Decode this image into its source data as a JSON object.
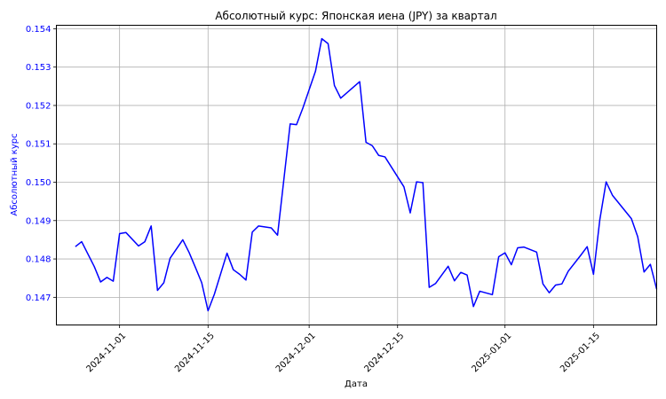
{
  "chart_data": {
    "type": "line",
    "title": "Абсолютный курс: Японская иена (JPY) за квартал",
    "xlabel": "Дата",
    "ylabel": "Абсолютный курс",
    "grid": true,
    "colors": {
      "line": "#0000ff",
      "ylabel": "#0000ff",
      "yticks": "#0000ff",
      "grid": "#b0b0b0"
    },
    "x_ticks": [
      "2024-11-01",
      "2024-11-15",
      "2024-12-01",
      "2024-12-15",
      "2025-01-01",
      "2025-01-15"
    ],
    "y_ticks": [
      "0.147",
      "0.148",
      "0.149",
      "0.150",
      "0.151",
      "0.152",
      "0.153",
      "0.154"
    ],
    "ylim": [
      0.14628,
      0.15409
    ],
    "xlim": [
      "2024-10-22",
      "2025-01-25"
    ],
    "series": [
      {
        "name": "",
        "points": [
          [
            "2024-10-25",
            0.14832
          ],
          [
            "2024-10-26",
            0.14845
          ],
          [
            "2024-10-28",
            0.1478
          ],
          [
            "2024-10-29",
            0.1474
          ],
          [
            "2024-10-30",
            0.14752
          ],
          [
            "2024-10-31",
            0.14742
          ],
          [
            "2024-11-01",
            0.14866
          ],
          [
            "2024-11-02",
            0.14869
          ],
          [
            "2024-11-04",
            0.14834
          ],
          [
            "2024-11-05",
            0.14845
          ],
          [
            "2024-11-06",
            0.14886
          ],
          [
            "2024-11-07",
            0.14718
          ],
          [
            "2024-11-08",
            0.14738
          ],
          [
            "2024-11-09",
            0.14802
          ],
          [
            "2024-11-11",
            0.1485
          ],
          [
            "2024-11-12",
            0.14817
          ],
          [
            "2024-11-13",
            0.14778
          ],
          [
            "2024-11-14",
            0.14738
          ],
          [
            "2024-11-15",
            0.14665
          ],
          [
            "2024-11-16",
            0.14708
          ],
          [
            "2024-11-18",
            0.14815
          ],
          [
            "2024-11-19",
            0.14772
          ],
          [
            "2024-11-20",
            0.1476
          ],
          [
            "2024-11-21",
            0.14745
          ],
          [
            "2024-11-22",
            0.1487
          ],
          [
            "2024-11-23",
            0.14886
          ],
          [
            "2024-11-25",
            0.14881
          ],
          [
            "2024-11-26",
            0.14862
          ],
          [
            "2024-11-28",
            0.15152
          ],
          [
            "2024-11-29",
            0.1515
          ],
          [
            "2024-11-30",
            0.15193
          ],
          [
            "2024-12-02",
            0.15289
          ],
          [
            "2024-12-03",
            0.15374
          ],
          [
            "2024-12-04",
            0.15361
          ],
          [
            "2024-12-05",
            0.15252
          ],
          [
            "2024-12-06",
            0.15219
          ],
          [
            "2024-12-09",
            0.15262
          ],
          [
            "2024-12-10",
            0.15104
          ],
          [
            "2024-12-11",
            0.15095
          ],
          [
            "2024-12-12",
            0.1507
          ],
          [
            "2024-12-13",
            0.15066
          ],
          [
            "2024-12-16",
            0.14988
          ],
          [
            "2024-12-17",
            0.1492
          ],
          [
            "2024-12-18",
            0.15001
          ],
          [
            "2024-12-19",
            0.14999
          ],
          [
            "2024-12-20",
            0.14726
          ],
          [
            "2024-12-21",
            0.14736
          ],
          [
            "2024-12-23",
            0.14781
          ],
          [
            "2024-12-24",
            0.14743
          ],
          [
            "2024-12-25",
            0.14765
          ],
          [
            "2024-12-26",
            0.14758
          ],
          [
            "2024-12-27",
            0.14676
          ],
          [
            "2024-12-28",
            0.14716
          ],
          [
            "2024-12-30",
            0.14707
          ],
          [
            "2024-12-31",
            0.14806
          ],
          [
            "2025-01-01",
            0.14816
          ],
          [
            "2025-01-02",
            0.14785
          ],
          [
            "2025-01-03",
            0.14829
          ],
          [
            "2025-01-04",
            0.14831
          ],
          [
            "2025-01-06",
            0.14818
          ],
          [
            "2025-01-07",
            0.14735
          ],
          [
            "2025-01-08",
            0.14712
          ],
          [
            "2025-01-09",
            0.14732
          ],
          [
            "2025-01-10",
            0.14735
          ],
          [
            "2025-01-11",
            0.14768
          ],
          [
            "2025-01-13",
            0.1481
          ],
          [
            "2025-01-14",
            0.14832
          ],
          [
            "2025-01-15",
            0.1476
          ],
          [
            "2025-01-16",
            0.14902
          ],
          [
            "2025-01-17",
            0.15001
          ],
          [
            "2025-01-18",
            0.14966
          ],
          [
            "2025-01-21",
            0.14905
          ],
          [
            "2025-01-22",
            0.14858
          ],
          [
            "2025-01-23",
            0.14766
          ],
          [
            "2025-01-24",
            0.14786
          ],
          [
            "2025-01-25",
            0.14721
          ]
        ]
      }
    ]
  }
}
